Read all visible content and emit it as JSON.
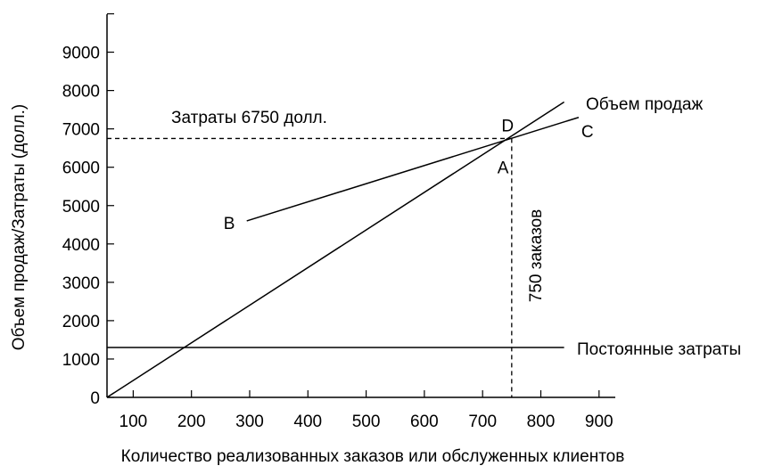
{
  "chart_data": {
    "type": "line",
    "title": "",
    "xlabel": "Количество реализованных заказов или обслуженных клиентов",
    "ylabel": "Объем продаж/Затраты (долл.)",
    "xlim": [
      55,
      900
    ],
    "ylim": [
      0,
      10000
    ],
    "x_ticks": [
      "100",
      "200",
      "300",
      "400",
      "500",
      "600",
      "700",
      "800",
      "900"
    ],
    "y_ticks": [
      "0",
      "1000",
      "2000",
      "3000",
      "4000",
      "5000",
      "6000",
      "7000",
      "8000",
      "9000"
    ],
    "grid": false,
    "series": [
      {
        "name": "Объем продаж",
        "points": [
          [
            55,
            0
          ],
          [
            840,
            7700
          ]
        ]
      },
      {
        "name": "Постоянные затраты",
        "points": [
          [
            55,
            1300
          ],
          [
            840,
            1300
          ]
        ]
      },
      {
        "points": [
          [
            295,
            4600
          ],
          [
            865,
            7300
          ]
        ]
      }
    ],
    "point_labels": [
      {
        "text": "B",
        "x": 265,
        "y": 4550
      },
      {
        "text": "C",
        "x": 880,
        "y": 6950
      },
      {
        "text": "D",
        "x": 743,
        "y": 7100
      },
      {
        "text": "A",
        "x": 735,
        "y": 6000
      }
    ],
    "annotations": {
      "cost_label": "Затраты 6750 долл.",
      "orders_label": "750 заказов",
      "cost_value": 6750,
      "orders_value": 750
    }
  }
}
